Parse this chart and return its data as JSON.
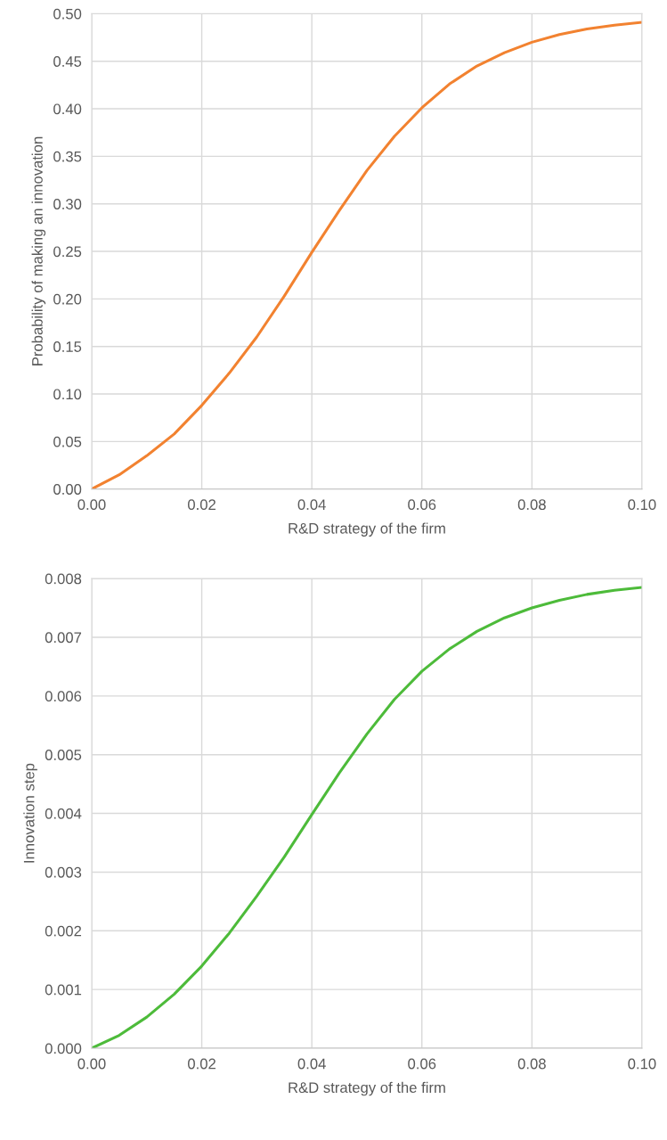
{
  "chart_data": [
    {
      "type": "line",
      "xlabel": "R&D strategy of the firm",
      "ylabel": "Probability of making an innovation",
      "x": [
        0,
        0.005,
        0.01,
        0.015,
        0.02,
        0.025,
        0.03,
        0.035,
        0.04,
        0.045,
        0.05,
        0.055,
        0.06,
        0.065,
        0.07,
        0.075,
        0.08,
        0.085,
        0.09,
        0.095,
        0.1
      ],
      "series": [
        {
          "color": "#f28230",
          "values": [
            0,
            0.015,
            0.035,
            0.058,
            0.088,
            0.122,
            0.16,
            0.203,
            0.249,
            0.293,
            0.335,
            0.371,
            0.401,
            0.426,
            0.445,
            0.459,
            0.47,
            0.478,
            0.484,
            0.488,
            0.491
          ]
        }
      ],
      "xlim": [
        0,
        0.1
      ],
      "ylim": [
        0,
        0.5
      ],
      "xticks": [
        {
          "value": 0,
          "label": "0.00"
        },
        {
          "value": 0.02,
          "label": "0.02"
        },
        {
          "value": 0.04,
          "label": "0.04"
        },
        {
          "value": 0.06,
          "label": "0.06"
        },
        {
          "value": 0.08,
          "label": "0.08"
        },
        {
          "value": 0.1,
          "label": "0.10"
        }
      ],
      "yticks": [
        {
          "value": 0,
          "label": "0.00"
        },
        {
          "value": 0.05,
          "label": "0.05"
        },
        {
          "value": 0.1,
          "label": "0.10"
        },
        {
          "value": 0.15,
          "label": "0.15"
        },
        {
          "value": 0.2,
          "label": "0.20"
        },
        {
          "value": 0.25,
          "label": "0.25"
        },
        {
          "value": 0.3,
          "label": "0.30"
        },
        {
          "value": 0.35,
          "label": "0.35"
        },
        {
          "value": 0.4,
          "label": "0.40"
        },
        {
          "value": 0.45,
          "label": "0.45"
        },
        {
          "value": 0.5,
          "label": "0.50"
        }
      ],
      "grid": true,
      "marker": "none",
      "line_style": "solid"
    },
    {
      "type": "line",
      "xlabel": "R&D strategy of the firm",
      "ylabel": "Innovation step",
      "x": [
        0,
        0.005,
        0.01,
        0.015,
        0.02,
        0.025,
        0.03,
        0.035,
        0.04,
        0.045,
        0.05,
        0.055,
        0.06,
        0.065,
        0.07,
        0.075,
        0.08,
        0.085,
        0.09,
        0.095,
        0.1
      ],
      "series": [
        {
          "color": "#4dbb3a",
          "values": [
            0,
            0.00022,
            0.00053,
            0.00092,
            0.0014,
            0.00196,
            0.00259,
            0.00326,
            0.00398,
            0.00469,
            0.00535,
            0.00594,
            0.00642,
            0.0068,
            0.0071,
            0.00733,
            0.0075,
            0.00763,
            0.00773,
            0.0078,
            0.00785
          ]
        }
      ],
      "xlim": [
        0,
        0.1
      ],
      "ylim": [
        0,
        0.008
      ],
      "xticks": [
        {
          "value": 0,
          "label": "0.00"
        },
        {
          "value": 0.02,
          "label": "0.02"
        },
        {
          "value": 0.04,
          "label": "0.04"
        },
        {
          "value": 0.06,
          "label": "0.06"
        },
        {
          "value": 0.08,
          "label": "0.08"
        },
        {
          "value": 0.1,
          "label": "0.10"
        }
      ],
      "yticks": [
        {
          "value": 0,
          "label": "0.000"
        },
        {
          "value": 0.001,
          "label": "0.001"
        },
        {
          "value": 0.002,
          "label": "0.002"
        },
        {
          "value": 0.003,
          "label": "0.003"
        },
        {
          "value": 0.004,
          "label": "0.004"
        },
        {
          "value": 0.005,
          "label": "0.005"
        },
        {
          "value": 0.006,
          "label": "0.006"
        },
        {
          "value": 0.007,
          "label": "0.007"
        },
        {
          "value": 0.008,
          "label": "0.008"
        }
      ],
      "grid": true,
      "marker": "none",
      "line_style": "solid"
    }
  ]
}
